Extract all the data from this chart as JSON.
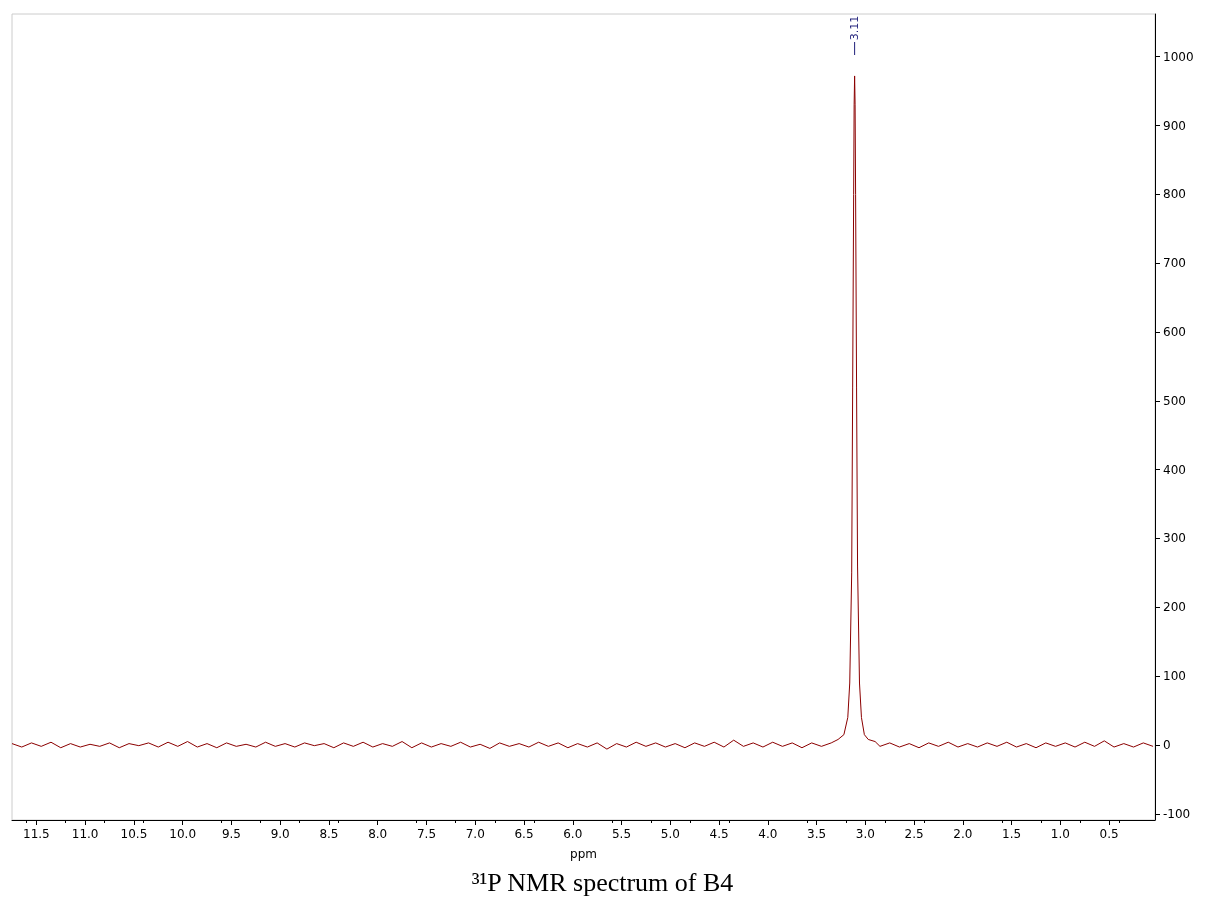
{
  "chart_data": {
    "type": "line",
    "title": "³¹P NMR spectrum of B4",
    "xlabel": "ppm",
    "x": [
      11.75,
      11.65,
      11.55,
      11.45,
      11.35,
      11.25,
      11.15,
      11.05,
      10.95,
      10.85,
      10.75,
      10.65,
      10.55,
      10.45,
      10.35,
      10.25,
      10.15,
      10.05,
      9.95,
      9.85,
      9.75,
      9.65,
      9.55,
      9.45,
      9.35,
      9.25,
      9.15,
      9.05,
      8.95,
      8.85,
      8.75,
      8.65,
      8.55,
      8.45,
      8.35,
      8.25,
      8.15,
      8.05,
      7.95,
      7.85,
      7.75,
      7.65,
      7.55,
      7.45,
      7.35,
      7.25,
      7.15,
      7.05,
      6.95,
      6.85,
      6.75,
      6.65,
      6.55,
      6.45,
      6.35,
      6.25,
      6.15,
      6.05,
      5.95,
      5.85,
      5.75,
      5.65,
      5.55,
      5.45,
      5.35,
      5.25,
      5.15,
      5.05,
      4.95,
      4.85,
      4.75,
      4.65,
      4.55,
      4.45,
      4.35,
      4.25,
      4.15,
      4.05,
      3.95,
      3.85,
      3.75,
      3.65,
      3.55,
      3.45,
      3.35,
      3.28,
      3.22,
      3.18,
      3.16,
      3.14,
      3.13,
      3.12,
      3.115,
      3.11,
      3.105,
      3.1,
      3.09,
      3.08,
      3.06,
      3.04,
      3.01,
      2.97,
      2.9,
      2.85,
      2.75,
      2.65,
      2.55,
      2.45,
      2.35,
      2.25,
      2.15,
      2.05,
      1.95,
      1.85,
      1.75,
      1.65,
      1.55,
      1.45,
      1.35,
      1.25,
      1.15,
      1.05,
      0.95,
      0.85,
      0.75,
      0.65,
      0.55,
      0.45,
      0.35,
      0.25,
      0.15,
      0.05
    ],
    "series": [
      {
        "color": "#8b0000",
        "values": [
          2,
          -3,
          3,
          -2,
          4,
          -4,
          2,
          -3,
          1,
          -2,
          3,
          -4,
          2,
          -1,
          3,
          -3,
          4,
          -2,
          5,
          -3,
          2,
          -4,
          3,
          -2,
          1,
          -3,
          4,
          -2,
          2,
          -3,
          3,
          -1,
          2,
          -4,
          3,
          -2,
          4,
          -3,
          2,
          -2,
          5,
          -4,
          3,
          -3,
          2,
          -2,
          4,
          -3,
          1,
          -5,
          3,
          -2,
          2,
          -3,
          4,
          -2,
          3,
          -4,
          2,
          -3,
          3,
          -6,
          2,
          -3,
          4,
          -2,
          3,
          -3,
          2,
          -4,
          3,
          -2,
          4,
          -3,
          7,
          -2,
          3,
          -3,
          4,
          -2,
          3,
          -4,
          3,
          -2,
          3,
          8,
          15,
          40,
          90,
          250,
          520,
          800,
          930,
          972,
          930,
          800,
          520,
          260,
          90,
          40,
          15,
          8,
          5,
          -2,
          3,
          -3,
          2,
          -4,
          3,
          -2,
          4,
          -3,
          2,
          -3,
          3,
          -2,
          4,
          -3,
          2,
          -4,
          3,
          -2,
          3,
          -3,
          4,
          -2,
          6,
          -3,
          2,
          -3,
          3,
          -2
        ]
      }
    ],
    "annotations": [
      "3.11"
    ],
    "xlim": [
      11.75,
      0.03
    ],
    "xticks": [
      11.5,
      {
        "value": 11,
        "label": "11.0"
      },
      10.5,
      {
        "value": 10,
        "label": "10.0"
      },
      9.5,
      {
        "value": 9,
        "label": "9.0"
      },
      8.5,
      {
        "value": 8,
        "label": "8.0"
      },
      7.5,
      {
        "value": 7,
        "label": "7.0"
      },
      6.5,
      {
        "value": 6,
        "label": "6.0"
      },
      5.5,
      {
        "value": 5,
        "label": "5.0"
      },
      4.5,
      {
        "value": 4,
        "label": "4.0"
      },
      3.5,
      {
        "value": 3,
        "label": "3.0"
      },
      2.5,
      {
        "value": 2,
        "label": "2.0"
      },
      1.5,
      {
        "value": 1,
        "label": "1.0"
      },
      0.5
    ],
    "ylim": [
      -109,
      1062
    ],
    "yticks": [
      -100,
      0,
      100,
      200,
      300,
      400,
      500,
      600,
      700,
      800,
      900,
      1000
    ],
    "grid": false,
    "marker": "none",
    "line_style": "solid"
  }
}
